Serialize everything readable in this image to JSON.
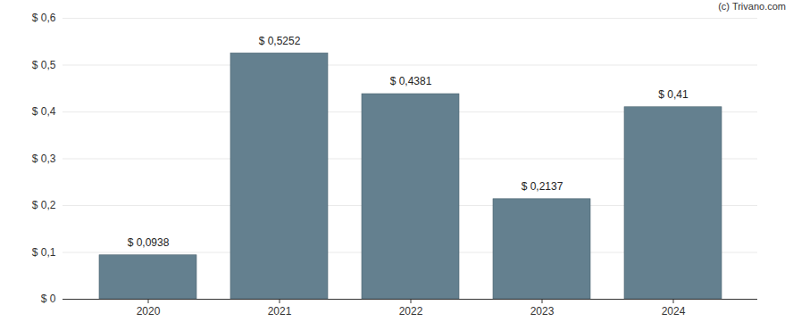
{
  "chart_data": {
    "type": "bar",
    "annotation": "(c) Trivano.com",
    "categories": [
      "2020",
      "2021",
      "2022",
      "2023",
      "2024"
    ],
    "values": [
      0.0938,
      0.5252,
      0.4381,
      0.2137,
      0.41
    ],
    "value_labels": [
      "$ 0,0938",
      "$ 0,5252",
      "$ 0,4381",
      "$ 0,2137",
      "$ 0,41"
    ],
    "data_labels": true,
    "color": "#64808f",
    "ylim": [
      0,
      0.6
    ],
    "yticks": [
      {
        "value": 0,
        "label": "$ 0"
      },
      {
        "value": 0.1,
        "label": "$ 0,1"
      },
      {
        "value": 0.2,
        "label": "$ 0,2"
      },
      {
        "value": 0.3,
        "label": "$ 0,3"
      },
      {
        "value": 0.4,
        "label": "$ 0,4"
      },
      {
        "value": 0.5,
        "label": "$ 0,5"
      },
      {
        "value": 0.6,
        "label": "$ 0,6"
      }
    ],
    "grid": true
  }
}
